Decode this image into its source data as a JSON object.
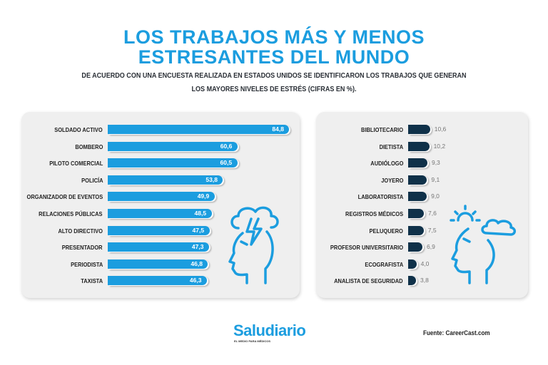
{
  "header": {
    "title_line1": "LOS TRABAJOS MÁS Y MENOS",
    "title_line2": "ESTRESANTES DEL MUNDO",
    "subtitle_line1": "DE ACUERDO CON UNA ENCUESTA REALIZADA EN ESTADOS UNIDOS SE IDENTIFICARON LOS TRABAJOS QUE GENERAN",
    "subtitle_line2": "LOS MAYORES NIVELES DE ESTRÉS (CIFRAS EN %)."
  },
  "colors": {
    "accent": "#1b9ddf",
    "most_bar": "#1b9ddf",
    "least_bar": "#0f3149"
  },
  "icons": {
    "most": "stressed-head-lightning-icon",
    "least": "calm-head-sun-cloud-icon"
  },
  "chart_data": [
    {
      "type": "bar",
      "orientation": "horizontal",
      "categories": [
        "SOLDADO ACTIVO",
        "BOMBERO",
        "PILOTO COMERCIAL",
        "POLICÍA",
        "ORGANIZADOR DE EVENTOS",
        "RELACIONES PÚBLICAS",
        "ALTO DIRECTIVO",
        "PRESENTADOR",
        "PERIODISTA",
        "TAXISTA"
      ],
      "values": [
        84.8,
        60.6,
        60.5,
        53.8,
        49.9,
        48.5,
        47.5,
        47.3,
        46.8,
        46.3
      ],
      "labels": [
        "84,8",
        "60,6",
        "60,5",
        "53,8",
        "49,9",
        "48,5",
        "47,5",
        "47,3",
        "46,8",
        "46,3"
      ]
    },
    {
      "type": "bar",
      "orientation": "horizontal",
      "categories": [
        "BIBLIOTECARIO",
        "DIETISTA",
        "AUDIÓLOGO",
        "JOYERO",
        "LABORATORISTA",
        "REGISTROS MÉDICOS",
        "PELUQUERO",
        "PROFESOR UNIVERSITARIO",
        "ECOGRAFISTA",
        "ANALISTA DE SEGURIDAD"
      ],
      "values": [
        10.6,
        10.2,
        9.3,
        9.1,
        9.0,
        7.6,
        7.5,
        6.9,
        4.0,
        3.8
      ],
      "labels": [
        "10,6",
        "10,2",
        "9,3",
        "9,1",
        "9,0",
        "7,6",
        "7,5",
        "6,9",
        "4,0",
        "3,8"
      ]
    }
  ],
  "footer": {
    "logo": "Saludiario",
    "logo_tagline": "EL MEDIO PARA MÉDICOS",
    "source": "Fuente: CareerCast.com"
  }
}
